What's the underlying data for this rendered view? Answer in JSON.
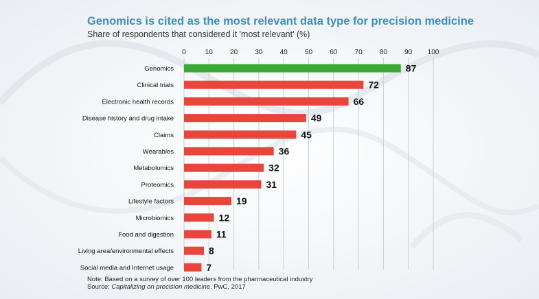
{
  "header": {
    "title": "Genomics is cited as the most relevant data type for precision medicine",
    "subtitle": "Share of respondents that considered it 'most relevant' (%)"
  },
  "footer": {
    "note": "Note: Based on a survey of over 100 leaders from the pharmaceutical industry",
    "source_prefix": "Source: ",
    "source_title": "Capitalizing on precision medicine",
    "source_suffix": ", PwC, 2017"
  },
  "colors": {
    "highlight": "#3aa935",
    "bar": "#e8453c",
    "grid": "#c8ced4",
    "title": "#3d8fb5"
  },
  "chart_data": {
    "type": "bar",
    "orientation": "horizontal",
    "title": "Genomics is cited as the most relevant data type for precision medicine",
    "subtitle": "Share of respondents that considered it 'most relevant' (%)",
    "categories": [
      "Genomics",
      "Clinical trials",
      "Electronic health records",
      "Disease history and drug intake",
      "Claims",
      "Wearables",
      "Metabolomics",
      "Proteomics",
      "Lifestyle factors",
      "Microbiomics",
      "Food and digestion",
      "Living area/environmental effects",
      "Social media and Internet usage"
    ],
    "values": [
      87,
      72,
      66,
      49,
      45,
      36,
      32,
      31,
      19,
      12,
      11,
      8,
      7
    ],
    "xlim": [
      0,
      100
    ],
    "xticks": [
      0,
      10,
      20,
      30,
      40,
      50,
      60,
      70,
      80,
      90,
      100
    ],
    "xaxis_position": "top",
    "grid": true,
    "highlighted_category": "Genomics"
  }
}
